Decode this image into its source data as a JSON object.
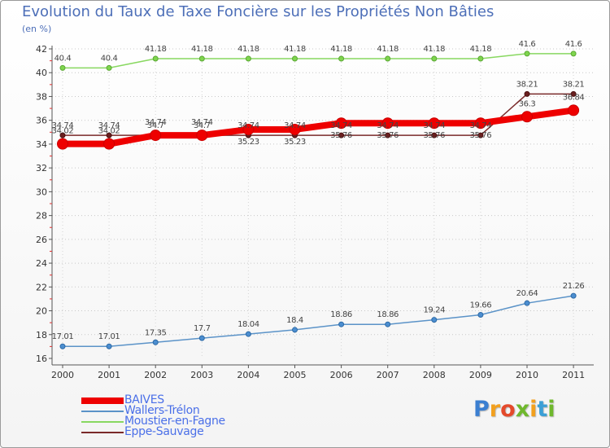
{
  "title": "Evolution du Taux de Taxe Foncière sur les Propriétés Non Bâties",
  "subtitle": "(en %)",
  "logo": {
    "text": "Proxiti",
    "letter_colors": [
      "#3b7fd1",
      "#f2a01f",
      "#e44a2b",
      "#6fb82d",
      "#f2a01f",
      "#3b9fd6",
      "#6fb82d"
    ]
  },
  "chart_data": {
    "type": "line",
    "x": [
      "2000",
      "2001",
      "2002",
      "2003",
      "2004",
      "2005",
      "2006",
      "2007",
      "2008",
      "2009",
      "2010",
      "2011"
    ],
    "yticks": [
      16,
      18,
      20,
      22,
      24,
      26,
      28,
      30,
      32,
      34,
      36,
      38,
      40,
      42
    ],
    "ylim": [
      16,
      42
    ],
    "grid": "horizontal-dotted",
    "legend_position": "bottom-left",
    "series": [
      {
        "name": "BAIVES",
        "color": "#ee0000",
        "values": [
          34.02,
          34.02,
          34.74,
          34.74,
          35.23,
          35.23,
          35.76,
          35.76,
          35.76,
          35.76,
          36.3,
          36.84
        ],
        "labels": [
          "34.02",
          "34.02",
          "34.74",
          "34.74",
          "35.23",
          "35.23",
          "35.76",
          "35.76",
          "35.76",
          "35.76",
          "36.3",
          "36.84"
        ]
      },
      {
        "name": "Wallers-Trélon",
        "color": "#5b93c8",
        "values": [
          17.01,
          17.01,
          17.35,
          17.7,
          18.04,
          18.4,
          18.86,
          18.86,
          19.24,
          19.66,
          20.64,
          21.26
        ],
        "labels": [
          "17.01",
          "17.01",
          "17.35",
          "17.7",
          "18.04",
          "18.4",
          "18.86",
          "18.86",
          "19.24",
          "19.66",
          "20.64",
          "21.26"
        ]
      },
      {
        "name": "Moustier-en-Fagne",
        "color": "#88d860",
        "values": [
          40.4,
          40.4,
          41.18,
          41.18,
          41.18,
          41.18,
          41.18,
          41.18,
          41.18,
          41.18,
          41.6,
          41.6
        ],
        "labels": [
          "40.4",
          "40.4",
          "41.18",
          "41.18",
          "41.18",
          "41.18",
          "41.18",
          "41.18",
          "41.18",
          "41.18",
          "41.6",
          "41.6"
        ]
      },
      {
        "name": "Eppe-Sauvage",
        "color": "#7a2a2a",
        "values": [
          34.74,
          34.74,
          34.74,
          34.74,
          34.74,
          34.74,
          34.74,
          34.74,
          34.74,
          34.74,
          38.21,
          38.21
        ],
        "labels": [
          "34.74",
          "34.74",
          "34.7",
          "34.7",
          "34.74",
          "34.74",
          "34.74",
          "34.74",
          "34.74",
          "34.74",
          "38.21",
          "38.21"
        ]
      }
    ]
  }
}
